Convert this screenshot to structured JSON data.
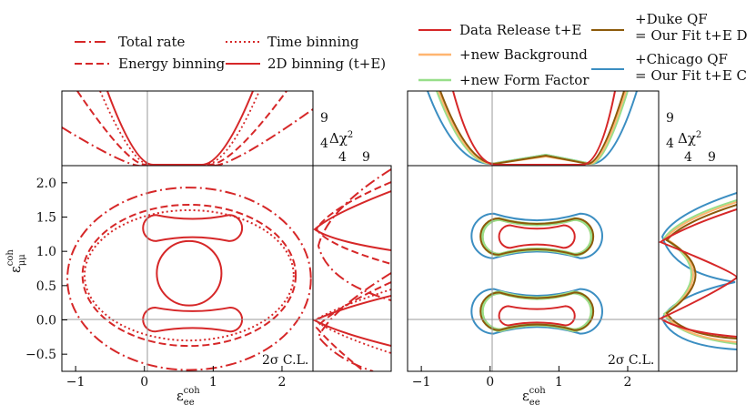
{
  "colors": {
    "red": "#d62728",
    "orange": "#ffb570",
    "green": "#98df8a",
    "brown": "#8c5a0a",
    "blue": "#3b8ec2",
    "axisline": "#999999"
  },
  "left_legend": [
    {
      "label": "Total rate",
      "style": "dashdot"
    },
    {
      "label": "Energy binning",
      "style": "dashed"
    },
    {
      "label": "Time binning",
      "style": "dotted"
    },
    {
      "label": "2D binning (t+E)",
      "style": "solid"
    }
  ],
  "right_legend": [
    {
      "label": "Data Release t+E",
      "color": "red"
    },
    {
      "label": "+new Background",
      "color": "orange"
    },
    {
      "label": "+new Form Factor",
      "color": "green"
    },
    {
      "label": "+Duke QF",
      "label2": "= Our Fit t+E D",
      "color": "brown"
    },
    {
      "label": "+Chicago QF",
      "label2": "= Our Fit t+E C",
      "color": "blue"
    }
  ],
  "axes": {
    "xlabel": "ε",
    "xlabel_sub": "ee",
    "xlabel_sup": "coh",
    "ylabel": "ε",
    "ylabel_sub": "μμ",
    "ylabel_sup": "coh",
    "delta_chi2": "Δχ",
    "delta_chi2_sup": "2",
    "cl_label": "2σ C.L."
  },
  "chart_data": [
    {
      "type": "line",
      "panel": "left",
      "xlim": [
        -1.2,
        2.45
      ],
      "ylim": [
        -0.75,
        2.25
      ],
      "x_ticks": [
        "−1",
        "0",
        "1",
        "2"
      ],
      "y_ticks": [
        "−0.5",
        "0.0",
        "0.5",
        "1.0",
        "1.5",
        "2.0"
      ],
      "delta_chi2_ticks": [
        "4",
        "9"
      ],
      "series": [
        {
          "style": "dashdot",
          "shape": "ellipse",
          "center": [
            0.65,
            0.6
          ],
          "radii": [
            1.77,
            1.33
          ]
        },
        {
          "style": "dashed",
          "shape": "ellipse",
          "center": [
            0.65,
            0.65
          ],
          "radii": [
            1.55,
            1.03
          ]
        },
        {
          "style": "dotted",
          "shape": "ellipse",
          "center": [
            0.65,
            0.65
          ],
          "radii": [
            1.52,
            0.95
          ]
        },
        {
          "style": "solid",
          "shape": "lobes",
          "center_x": 0.7,
          "lobes": [
            {
              "y": [
                1.15,
                1.53
              ],
              "half_width": 0.72
            },
            {
              "y": [
                -0.17,
                0.18
              ],
              "half_width": 0.72
            }
          ],
          "inner_ring": {
            "center": [
              0.65,
              0.68
            ],
            "radii": [
              0.47,
              0.47
            ]
          }
        }
      ]
    },
    {
      "type": "line",
      "panel": "right",
      "xlim": [
        -1.2,
        2.45
      ],
      "ylim": [
        -0.75,
        2.25
      ],
      "x_ticks": [
        "−1",
        "0",
        "1",
        "2"
      ],
      "delta_chi2_ticks": [
        "4",
        "9"
      ],
      "series": [
        {
          "name": "Data Release t+E",
          "color": "red",
          "lobes": [
            {
              "y": [
                1.05,
                1.38
              ]
            },
            {
              "y": [
                -0.08,
                0.2
              ]
            }
          ],
          "half_width": 0.55
        },
        {
          "name": "+new Background",
          "color": "orange",
          "lobes": [
            {
              "y": [
                0.95,
                1.47
              ]
            },
            {
              "y": [
                -0.15,
                0.4
              ]
            }
          ],
          "half_width": 0.8
        },
        {
          "name": "+new Form Factor",
          "color": "green",
          "lobes": [
            {
              "y": [
                0.95,
                1.47
              ]
            },
            {
              "y": [
                -0.15,
                0.4
              ]
            }
          ],
          "half_width": 0.8
        },
        {
          "name": "+Duke QF",
          "color": "brown",
          "lobes": [
            {
              "y": [
                0.95,
                1.48
              ]
            },
            {
              "y": [
                -0.15,
                0.4
              ]
            }
          ],
          "half_width": 0.82
        },
        {
          "name": "+Chicago QF",
          "color": "blue",
          "lobes": [
            {
              "y": [
                0.9,
                1.55
              ]
            },
            {
              "y": [
                -0.2,
                0.45
              ]
            }
          ],
          "half_width": 0.95
        }
      ]
    }
  ]
}
